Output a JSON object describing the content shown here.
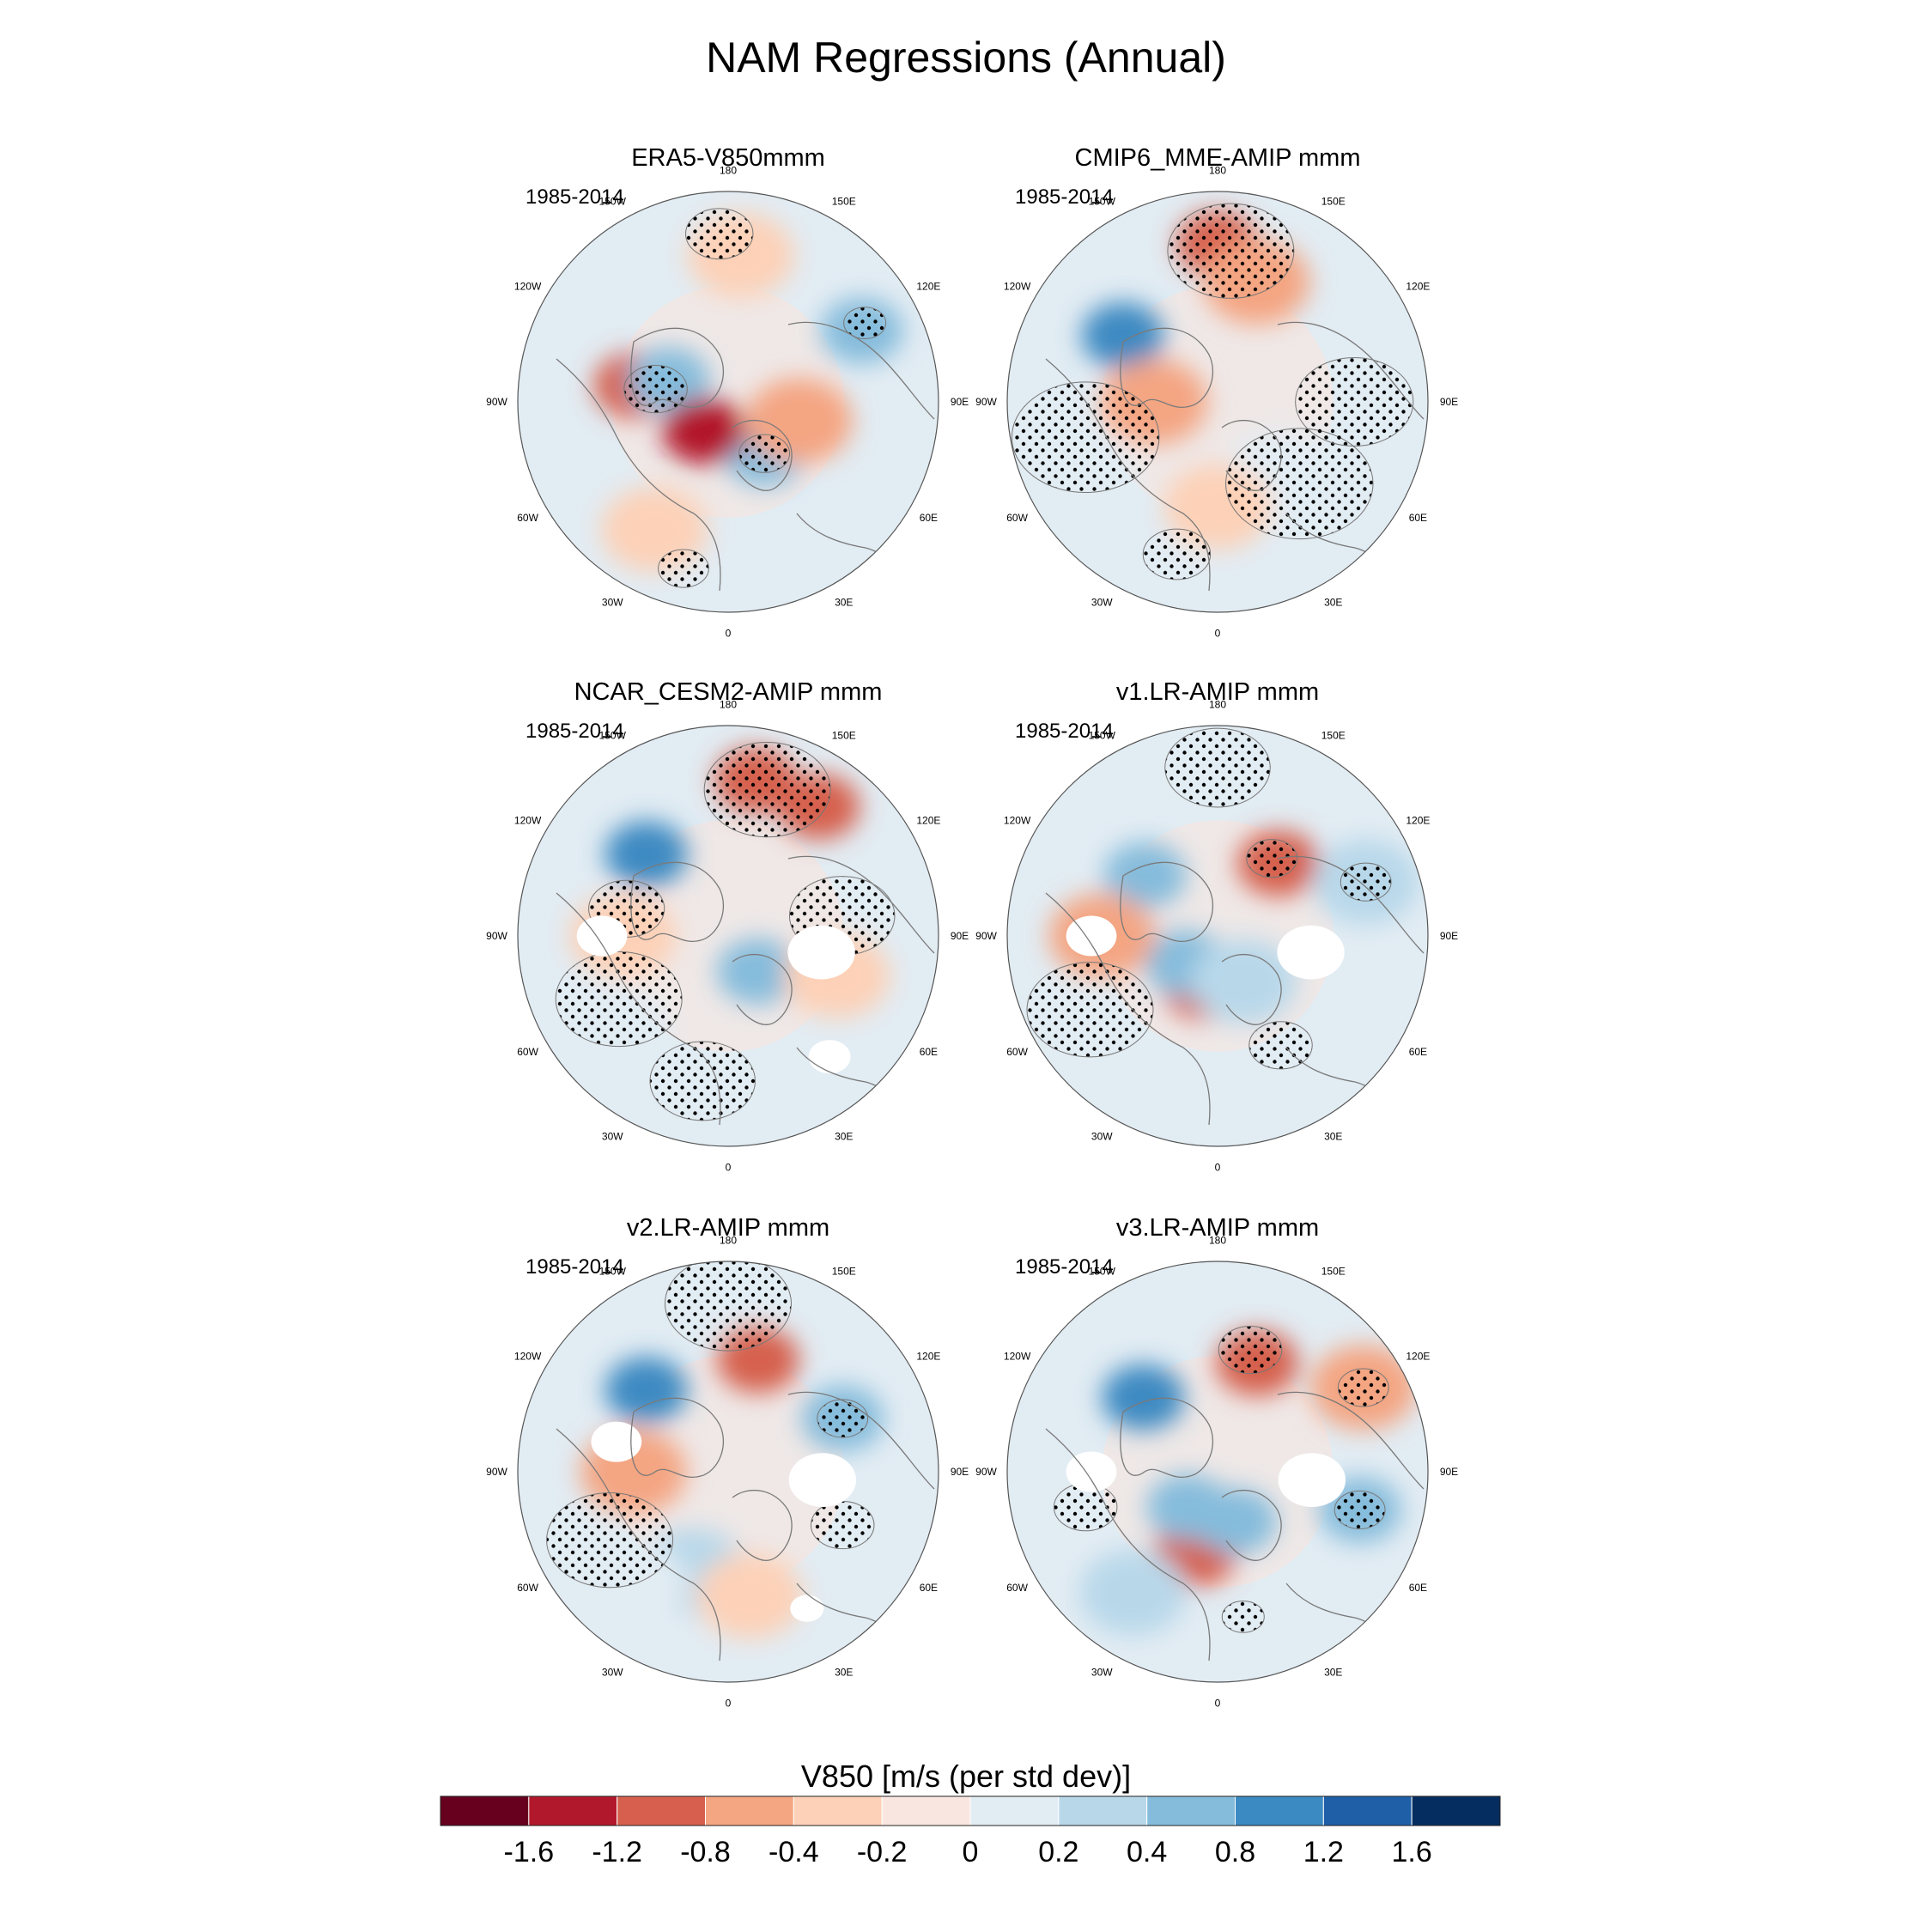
{
  "figure": {
    "title": "NAM Regressions (Annual)",
    "colorbar_title": "V850 [m/s (per std dev)]"
  },
  "chart_data": {
    "type": "heatmap",
    "projection": "north-polar-stereographic",
    "variable": "V850",
    "units": "m/s (per std dev)",
    "period": "1985-2014",
    "longitude_labels": {
      "top": "180",
      "bottom": "0",
      "left": "90W",
      "right": "90E",
      "upper_left_1": "150W",
      "upper_left_2": "120W",
      "upper_right_1": "150E",
      "upper_right_2": "120E",
      "lower_left_1": "60W",
      "lower_left_2": "30W",
      "lower_right_1": "60E",
      "lower_right_2": "30E"
    },
    "colorbar": {
      "levels": [
        "-1.6",
        "-1.2",
        "-0.8",
        "-0.4",
        "-0.2",
        "0",
        "0.2",
        "0.4",
        "0.8",
        "1.2",
        "1.6"
      ],
      "colors": [
        "#67001f",
        "#b2182b",
        "#d6604d",
        "#f4a582",
        "#fdd1b7",
        "#f9e6e0",
        "#e2ecf3",
        "#b8d8ea",
        "#85bcdc",
        "#3c8ac2",
        "#1f5fa8",
        "#052d5f"
      ]
    },
    "panels": [
      {
        "title": "ERA5-V850mmm",
        "period": "1985-2014",
        "anomalies": [
          {
            "lon": 260,
            "r": 0.45,
            "value": -0.8
          },
          {
            "lon": 118,
            "r": 0.72,
            "value": 0.8
          },
          {
            "lon": 250,
            "r": 0.3,
            "value": 0.8
          },
          {
            "lon": 35,
            "r": 0.3,
            "value": 0.8
          },
          {
            "lon": 320,
            "r": 0.18,
            "value": -1.2
          },
          {
            "lon": 75,
            "r": 0.35,
            "value": -0.4
          },
          {
            "lon": 175,
            "r": 0.7,
            "value": -0.2
          },
          {
            "lon": 330,
            "r": 0.7,
            "value": -0.2
          }
        ],
        "stipple": [
          {
            "lon": 183,
            "r": 0.8,
            "size": 0.16
          },
          {
            "lon": 260,
            "r": 0.35,
            "size": 0.15
          },
          {
            "lon": 120,
            "r": 0.75,
            "size": 0.1
          },
          {
            "lon": 345,
            "r": 0.82,
            "size": 0.12
          },
          {
            "lon": 35,
            "r": 0.3,
            "size": 0.12
          }
        ],
        "masked": []
      },
      {
        "title": "CMIP6_MME-AMIP  mmm",
        "period": "1985-2014",
        "anomalies": [
          {
            "lon": 180,
            "r": 0.75,
            "value": -0.8
          },
          {
            "lon": 162,
            "r": 0.6,
            "value": -0.4
          },
          {
            "lon": 235,
            "r": 0.55,
            "value": 1.2
          },
          {
            "lon": 270,
            "r": 0.3,
            "value": -0.4
          },
          {
            "lon": 40,
            "r": 0.45,
            "value": 0.2
          },
          {
            "lon": 300,
            "r": 0.75,
            "value": 0.2
          },
          {
            "lon": 60,
            "r": 0.7,
            "value": 0.2
          },
          {
            "lon": 0,
            "r": 0.5,
            "value": -0.2
          }
        ],
        "stipple": [
          {
            "lon": 175,
            "r": 0.72,
            "size": 0.3
          },
          {
            "lon": 285,
            "r": 0.65,
            "size": 0.35
          },
          {
            "lon": 45,
            "r": 0.55,
            "size": 0.35
          },
          {
            "lon": 90,
            "r": 0.65,
            "size": 0.28
          },
          {
            "lon": 345,
            "r": 0.75,
            "size": 0.16
          }
        ],
        "masked": []
      },
      {
        "title": "NCAR_CESM2-AMIP  mmm",
        "period": "1985-2014",
        "anomalies": [
          {
            "lon": 170,
            "r": 0.75,
            "value": -0.8
          },
          {
            "lon": 145,
            "r": 0.75,
            "value": -0.8
          },
          {
            "lon": 225,
            "r": 0.55,
            "value": 1.2
          },
          {
            "lon": 40,
            "r": 0.22,
            "value": 0.8
          },
          {
            "lon": 310,
            "r": 0.7,
            "value": 0.2
          },
          {
            "lon": 270,
            "r": 0.5,
            "value": -0.2
          },
          {
            "lon": 70,
            "r": 0.55,
            "value": -0.2
          }
        ],
        "stipple": [
          {
            "lon": 165,
            "r": 0.72,
            "size": 0.3
          },
          {
            "lon": 300,
            "r": 0.6,
            "size": 0.3
          },
          {
            "lon": 350,
            "r": 0.7,
            "size": 0.25
          },
          {
            "lon": 100,
            "r": 0.55,
            "size": 0.25
          },
          {
            "lon": 255,
            "r": 0.5,
            "size": 0.18
          }
        ],
        "masked": [
          {
            "lon": 80,
            "r": 0.45,
            "size": 0.16
          },
          {
            "lon": 270,
            "r": 0.6,
            "size": 0.12
          },
          {
            "lon": 40,
            "r": 0.75,
            "size": 0.1
          }
        ]
      },
      {
        "title": "v1.LR-AMIP  mmm",
        "period": "1985-2014",
        "anomalies": [
          {
            "lon": 230,
            "r": 0.45,
            "value": 0.8
          },
          {
            "lon": 140,
            "r": 0.45,
            "value": -0.8
          },
          {
            "lon": 345,
            "r": 0.25,
            "value": -0.8
          },
          {
            "lon": 310,
            "r": 0.2,
            "value": 0.8
          },
          {
            "lon": 30,
            "r": 0.25,
            "value": 0.4
          },
          {
            "lon": 110,
            "r": 0.75,
            "value": 0.4
          },
          {
            "lon": 270,
            "r": 0.55,
            "value": -0.4
          }
        ],
        "stipple": [
          {
            "lon": 180,
            "r": 0.8,
            "size": 0.25
          },
          {
            "lon": 145,
            "r": 0.45,
            "size": 0.12
          },
          {
            "lon": 110,
            "r": 0.75,
            "size": 0.12
          },
          {
            "lon": 300,
            "r": 0.7,
            "size": 0.3
          },
          {
            "lon": 30,
            "r": 0.6,
            "size": 0.15
          }
        ],
        "masked": [
          {
            "lon": 80,
            "r": 0.45,
            "size": 0.16
          },
          {
            "lon": 270,
            "r": 0.6,
            "size": 0.12
          }
        ]
      },
      {
        "title": "v2.LR-AMIP  mmm",
        "period": "1985-2014",
        "anomalies": [
          {
            "lon": 225,
            "r": 0.55,
            "value": 1.2
          },
          {
            "lon": 165,
            "r": 0.55,
            "value": -0.8
          },
          {
            "lon": 115,
            "r": 0.6,
            "value": 0.8
          },
          {
            "lon": 270,
            "r": 0.45,
            "value": -0.4
          },
          {
            "lon": 340,
            "r": 0.5,
            "value": 0.4
          },
          {
            "lon": 320,
            "r": 0.7,
            "value": 0.2
          },
          {
            "lon": 10,
            "r": 0.6,
            "value": -0.2
          }
        ],
        "stipple": [
          {
            "lon": 180,
            "r": 0.8,
            "size": 0.3
          },
          {
            "lon": 300,
            "r": 0.65,
            "size": 0.3
          },
          {
            "lon": 115,
            "r": 0.6,
            "size": 0.12
          },
          {
            "lon": 65,
            "r": 0.6,
            "size": 0.15
          }
        ],
        "masked": [
          {
            "lon": 85,
            "r": 0.45,
            "size": 0.16
          },
          {
            "lon": 255,
            "r": 0.55,
            "size": 0.12
          },
          {
            "lon": 30,
            "r": 0.75,
            "size": 0.08
          }
        ]
      },
      {
        "title": "v3.LR-AMIP  mmm",
        "period": "1985-2014",
        "anomalies": [
          {
            "lon": 225,
            "r": 0.5,
            "value": 1.2
          },
          {
            "lon": 160,
            "r": 0.55,
            "value": -0.8
          },
          {
            "lon": 345,
            "r": 0.4,
            "value": -0.8
          },
          {
            "lon": 20,
            "r": 0.25,
            "value": 0.8
          },
          {
            "lon": 320,
            "r": 0.22,
            "value": 0.8
          },
          {
            "lon": 75,
            "r": 0.7,
            "value": 0.8
          },
          {
            "lon": 120,
            "r": 0.8,
            "value": -0.4
          },
          {
            "lon": 325,
            "r": 0.7,
            "value": 0.4
          }
        ],
        "stipple": [
          {
            "lon": 165,
            "r": 0.6,
            "size": 0.15
          },
          {
            "lon": 120,
            "r": 0.8,
            "size": 0.12
          },
          {
            "lon": 285,
            "r": 0.65,
            "size": 0.15
          },
          {
            "lon": 10,
            "r": 0.7,
            "size": 0.1
          },
          {
            "lon": 75,
            "r": 0.7,
            "size": 0.12
          }
        ],
        "masked": [
          {
            "lon": 85,
            "r": 0.45,
            "size": 0.16
          },
          {
            "lon": 270,
            "r": 0.6,
            "size": 0.12
          }
        ]
      }
    ]
  }
}
